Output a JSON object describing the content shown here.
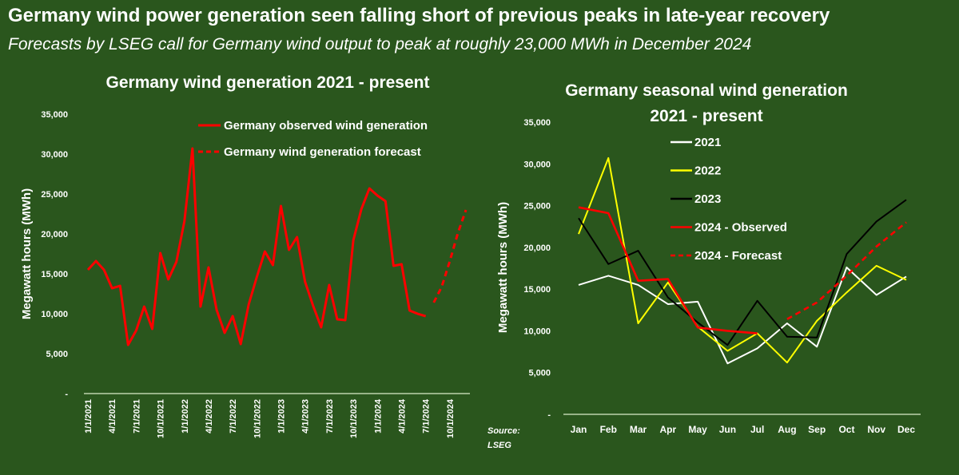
{
  "title": "Germany wind power generation seen falling short of previous peaks in late-year recovery",
  "subtitle": "Forecasts by LSEG call for Germany wind output to peak at roughly 23,000 MWh in December 2024",
  "source": [
    "Source:",
    "LSEG"
  ],
  "colors": {
    "background": "#2a561d",
    "observed": "#ff0000",
    "y2021": "#ffffff",
    "y2022": "#ffff00",
    "y2023": "#000000"
  },
  "chart_data": [
    {
      "type": "line",
      "title": "Germany wind generation 2021 - present",
      "ylabel": "Megawatt hours (MWh)",
      "ylim": [
        0,
        35000
      ],
      "yticks": [
        "-",
        "5,000",
        "10,000",
        "15,000",
        "20,000",
        "25,000",
        "30,000",
        "35,000"
      ],
      "xticks": [
        "1/1/2021",
        "4/1/2021",
        "7/1/2021",
        "10/1/2021",
        "1/1/2022",
        "4/1/2022",
        "7/1/2022",
        "10/1/2022",
        "1/1/2023",
        "4/1/2023",
        "7/1/2023",
        "10/1/2023",
        "1/1/2024",
        "4/1/2024",
        "7/1/2024",
        "10/1/2024"
      ],
      "legend_position": "top-right",
      "series": [
        {
          "name": "Germany observed wind generation",
          "style": "solid",
          "color": "#ff0000",
          "start": "2021-01",
          "values": [
            15500,
            16600,
            15500,
            13200,
            13500,
            6100,
            7900,
            10900,
            8100,
            17600,
            14300,
            16500,
            21600,
            30700,
            10900,
            15800,
            10500,
            7600,
            9700,
            6200,
            11200,
            14600,
            17800,
            16100,
            23500,
            18000,
            19600,
            14000,
            11000,
            8300,
            13600,
            9300,
            9200,
            19200,
            23100,
            25700,
            24800,
            24100,
            16000,
            16200,
            10400,
            10000,
            9700
          ]
        },
        {
          "name": "Germany wind generation forecast",
          "style": "dashed",
          "color": "#ff0000",
          "start": "2024-08",
          "values": [
            11400,
            13400,
            16600,
            20100,
            23000
          ]
        }
      ]
    },
    {
      "type": "line",
      "title": "Germany seasonal wind generation 2021 - present",
      "title_lines": [
        "Germany seasonal wind generation",
        "2021 - present"
      ],
      "ylabel": "Megawatt hours (MWh)",
      "ylim": [
        0,
        35000
      ],
      "yticks": [
        "-",
        "5,000",
        "10,000",
        "15,000",
        "20,000",
        "25,000",
        "30,000",
        "35,000"
      ],
      "categories": [
        "Jan",
        "Feb",
        "Mar",
        "Apr",
        "May",
        "Jun",
        "Jul",
        "Aug",
        "Sep",
        "Oct",
        "Nov",
        "Dec"
      ],
      "legend_position": "top-center",
      "series": [
        {
          "name": "2021",
          "color": "#ffffff",
          "style": "solid",
          "values": [
            15500,
            16600,
            15500,
            13200,
            13500,
            6100,
            7900,
            10900,
            8100,
            17600,
            14300,
            16500
          ]
        },
        {
          "name": "2022",
          "color": "#ffff00",
          "style": "solid",
          "values": [
            21600,
            30700,
            10900,
            15800,
            10500,
            7600,
            9700,
            6200,
            11200,
            14600,
            17800,
            16100
          ]
        },
        {
          "name": "2023",
          "color": "#000000",
          "style": "solid",
          "values": [
            23500,
            18000,
            19600,
            14000,
            11000,
            8300,
            13600,
            9300,
            9200,
            19200,
            23100,
            25700
          ]
        },
        {
          "name": "2024 - Observed",
          "color": "#ff0000",
          "style": "solid",
          "values": [
            24800,
            24100,
            16000,
            16200,
            10400,
            10000,
            9700,
            null,
            null,
            null,
            null,
            null
          ]
        },
        {
          "name": "2024 - Forecast",
          "color": "#ff0000",
          "style": "dashed",
          "values": [
            null,
            null,
            null,
            null,
            null,
            null,
            null,
            11400,
            13400,
            16600,
            20100,
            23000
          ]
        }
      ]
    }
  ]
}
